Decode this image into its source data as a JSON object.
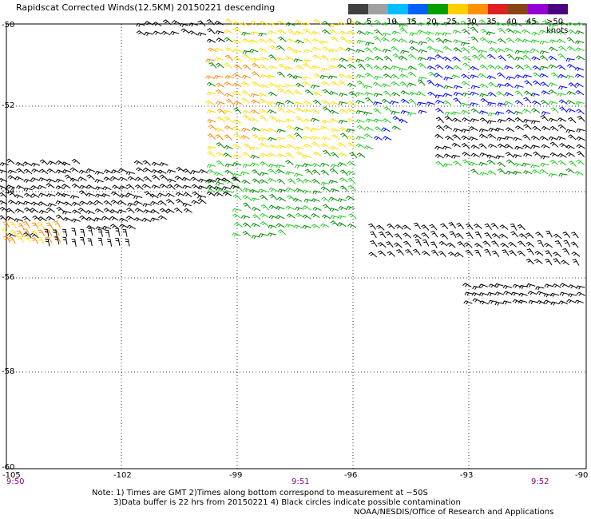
{
  "title": "Rapidscat Corrected Winds(12.5KM) 20150221 descending",
  "legend": {
    "labels": [
      "0",
      "5",
      "10",
      "15",
      "20",
      "25",
      "30",
      "35",
      "40",
      "45",
      ">50 knots"
    ],
    "colors": [
      "#404040",
      "#a0a0a0",
      "#00bfff",
      "#0060ff",
      "#00a000",
      "#ffd000",
      "#ff9000",
      "#e02020",
      "#8b4513",
      "#9400d3",
      "#4b0082"
    ]
  },
  "axes": {
    "lon_labels": [
      "-105",
      "-102",
      "-99",
      "-96",
      "-93",
      "-90"
    ],
    "lat_labels": [
      "-50",
      "-52",
      "-54",
      "-56",
      "-58",
      "-60"
    ]
  },
  "times": [
    "9:50",
    "9:51",
    "9:52"
  ],
  "notes": {
    "line1": "Note: 1) Times are GMT 2)Times along bottom correspond to measurement at ~50S",
    "line2": "3)Data buffer is 22 hrs from 20150221 4) Black circles indicate possible contamination",
    "line3": "NOAA/NESDIS/Office of Research and Applications"
  },
  "barb_colors": {
    "black": "#000000",
    "green": "#22cc22",
    "darkgreen": "#008800",
    "yellow": "#ffdd00",
    "orange": "#ff8800",
    "blue": "#0000ff"
  }
}
